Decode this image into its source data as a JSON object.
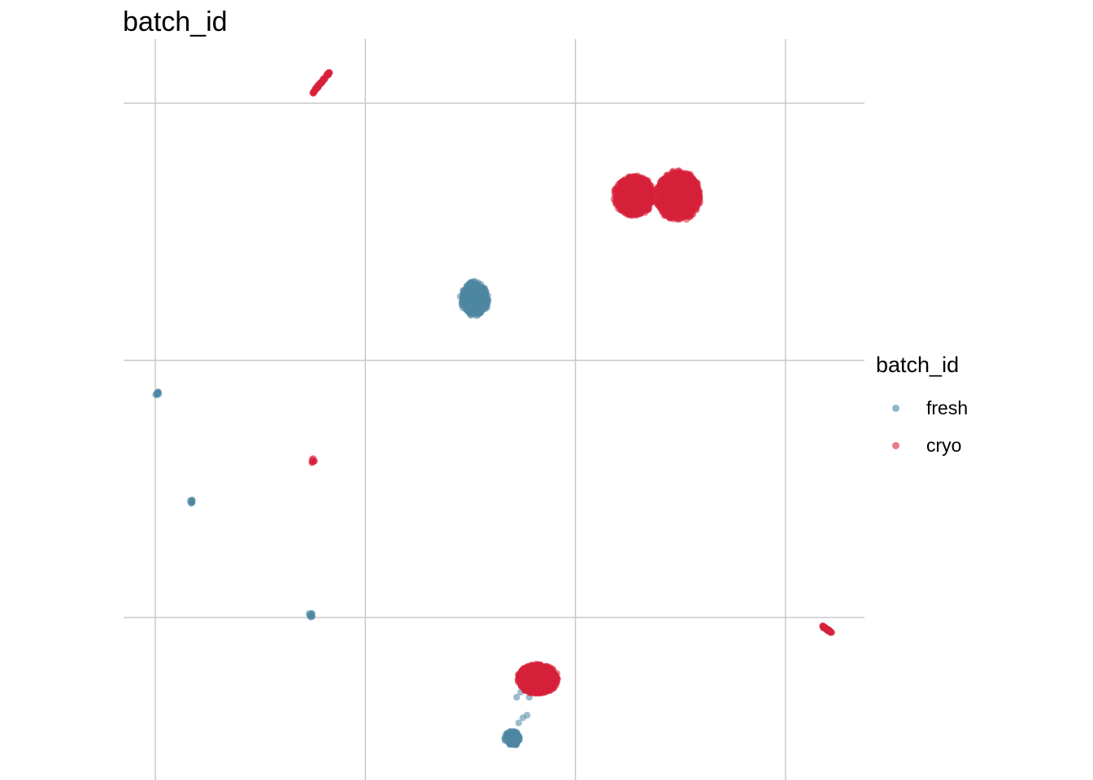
{
  "title": "batch_id",
  "legend": {
    "title": "batch_id",
    "items": [
      {
        "label": "fresh",
        "color": "#4f86a3"
      },
      {
        "label": "cryo",
        "color": "#d7213b"
      }
    ]
  },
  "chart_data": {
    "type": "scatter",
    "title": "batch_id",
    "xlabel": "",
    "ylabel": "",
    "grid": true,
    "axis_tick_labels_shown": false,
    "legend_position": "right",
    "xlim": [
      -0.15,
      3.4
    ],
    "ylim": [
      -0.6,
      2.5
    ],
    "x_gridlines": [
      0,
      1,
      2,
      3
    ],
    "y_gridlines": [
      0,
      1,
      2
    ],
    "series": [
      {
        "name": "fresh",
        "color": "#4f86a3",
        "clusters": [
          {
            "x": 1.52,
            "y": 1.24,
            "spread_x": 0.07,
            "spread_y": 0.07,
            "n": 380
          },
          {
            "x": 1.7,
            "y": -0.47,
            "spread_x": 0.04,
            "spread_y": 0.03,
            "n": 120
          },
          {
            "x": 0.01,
            "y": 0.87,
            "spread_x": 0.01,
            "spread_y": 0.01,
            "n": 8
          },
          {
            "x": 0.17,
            "y": 0.45,
            "spread_x": 0.01,
            "spread_y": 0.01,
            "n": 8
          },
          {
            "x": 0.74,
            "y": 0.01,
            "spread_x": 0.012,
            "spread_y": 0.01,
            "n": 10
          }
        ],
        "points": [
          [
            1.72,
            -0.31
          ],
          [
            1.78,
            -0.31
          ],
          [
            1.74,
            -0.29
          ],
          [
            1.75,
            -0.39
          ],
          [
            1.77,
            -0.38
          ],
          [
            1.73,
            -0.41
          ],
          [
            1.58,
            1.22
          ],
          [
            1.55,
            1.2
          ]
        ]
      },
      {
        "name": "cryo",
        "color": "#d7213b",
        "clusters": [
          {
            "x": 2.28,
            "y": 1.64,
            "spread_x": 0.1,
            "spread_y": 0.08,
            "n": 900
          },
          {
            "x": 2.49,
            "y": 1.64,
            "spread_x": 0.11,
            "spread_y": 0.1,
            "n": 1100
          },
          {
            "x": 1.82,
            "y": -0.24,
            "spread_x": 0.1,
            "spread_y": 0.06,
            "n": 900
          },
          {
            "x": 0.75,
            "y": 0.61,
            "spread_x": 0.01,
            "spread_y": 0.01,
            "n": 8
          }
        ],
        "lines": [
          {
            "from": [
              0.75,
              2.04
            ],
            "to": [
              0.83,
              2.12
            ],
            "n": 60
          },
          {
            "from": [
              3.17,
              -0.03
            ],
            "to": [
              3.22,
              -0.06
            ],
            "n": 40
          }
        ]
      }
    ]
  }
}
